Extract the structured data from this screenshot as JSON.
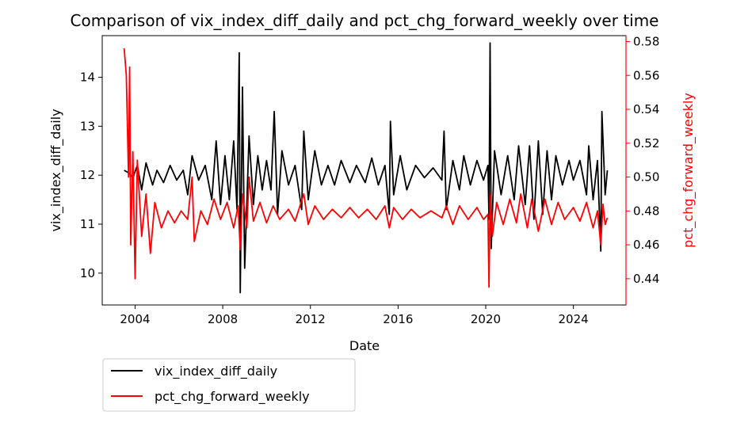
{
  "chart_data": {
    "type": "line",
    "title": "Comparison of vix_index_diff_daily and pct_chg_forward_weekly over time",
    "xlabel": "Date",
    "ylabel_left": "vix_index_diff_daily",
    "ylabel_right": "pct_chg_forward_weekly",
    "xlim": [
      2002.5,
      2026.4
    ],
    "ylim_left": [
      9.35,
      14.85
    ],
    "ylim_right": [
      0.4245,
      0.5835
    ],
    "x_ticks": [
      "2004",
      "2008",
      "2012",
      "2016",
      "2020",
      "2024"
    ],
    "y_ticks_left": [
      "10",
      "11",
      "12",
      "13",
      "14"
    ],
    "y_ticks_right": [
      "0.44",
      "0.46",
      "0.48",
      "0.50",
      "0.52",
      "0.54",
      "0.56",
      "0.58"
    ],
    "grid": false,
    "legend_position": "below-left",
    "colors": {
      "left_axis": "#000000",
      "right_axis": "#ff0000"
    },
    "series": [
      {
        "name": "vix_index_diff_daily",
        "axis": "left",
        "color": "#000000",
        "points": [
          [
            2003.5,
            12.1
          ],
          [
            2003.7,
            12.05
          ],
          [
            2003.9,
            11.95
          ],
          [
            2004.1,
            12.2
          ],
          [
            2004.3,
            11.7
          ],
          [
            2004.5,
            12.25
          ],
          [
            2004.8,
            11.8
          ],
          [
            2005.0,
            12.1
          ],
          [
            2005.3,
            11.85
          ],
          [
            2005.6,
            12.2
          ],
          [
            2005.9,
            11.9
          ],
          [
            2006.2,
            12.1
          ],
          [
            2006.4,
            11.6
          ],
          [
            2006.6,
            12.4
          ],
          [
            2006.9,
            11.9
          ],
          [
            2007.2,
            12.2
          ],
          [
            2007.5,
            11.5
          ],
          [
            2007.7,
            12.7
          ],
          [
            2007.9,
            11.4
          ],
          [
            2008.1,
            12.4
          ],
          [
            2008.3,
            11.5
          ],
          [
            2008.5,
            12.7
          ],
          [
            2008.65,
            11.3
          ],
          [
            2008.75,
            14.5
          ],
          [
            2008.8,
            9.6
          ],
          [
            2008.9,
            13.8
          ],
          [
            2009.0,
            10.1
          ],
          [
            2009.2,
            12.8
          ],
          [
            2009.4,
            11.4
          ],
          [
            2009.6,
            12.4
          ],
          [
            2009.8,
            11.7
          ],
          [
            2010.0,
            12.3
          ],
          [
            2010.2,
            11.7
          ],
          [
            2010.35,
            13.3
          ],
          [
            2010.5,
            11.2
          ],
          [
            2010.7,
            12.5
          ],
          [
            2011.0,
            11.8
          ],
          [
            2011.3,
            12.2
          ],
          [
            2011.6,
            11.3
          ],
          [
            2011.7,
            12.9
          ],
          [
            2011.9,
            11.5
          ],
          [
            2012.2,
            12.5
          ],
          [
            2012.5,
            11.8
          ],
          [
            2012.8,
            12.2
          ],
          [
            2013.1,
            11.8
          ],
          [
            2013.4,
            12.3
          ],
          [
            2013.8,
            11.85
          ],
          [
            2014.1,
            12.2
          ],
          [
            2014.5,
            11.85
          ],
          [
            2014.8,
            12.35
          ],
          [
            2015.1,
            11.8
          ],
          [
            2015.4,
            12.2
          ],
          [
            2015.6,
            11.2
          ],
          [
            2015.65,
            13.1
          ],
          [
            2015.8,
            11.6
          ],
          [
            2016.1,
            12.4
          ],
          [
            2016.4,
            11.7
          ],
          [
            2016.8,
            12.2
          ],
          [
            2017.2,
            11.95
          ],
          [
            2017.6,
            12.15
          ],
          [
            2018.0,
            11.9
          ],
          [
            2018.1,
            12.9
          ],
          [
            2018.2,
            11.3
          ],
          [
            2018.5,
            12.3
          ],
          [
            2018.8,
            11.7
          ],
          [
            2019.0,
            12.4
          ],
          [
            2019.3,
            11.8
          ],
          [
            2019.6,
            12.3
          ],
          [
            2019.9,
            11.9
          ],
          [
            2020.1,
            12.2
          ],
          [
            2020.15,
            11.1
          ],
          [
            2020.2,
            14.7
          ],
          [
            2020.25,
            10.5
          ],
          [
            2020.4,
            12.5
          ],
          [
            2020.7,
            11.6
          ],
          [
            2021.0,
            12.4
          ],
          [
            2021.3,
            11.5
          ],
          [
            2021.5,
            12.6
          ],
          [
            2021.8,
            11.4
          ],
          [
            2022.0,
            12.6
          ],
          [
            2022.2,
            11.1
          ],
          [
            2022.4,
            12.7
          ],
          [
            2022.6,
            11.2
          ],
          [
            2022.8,
            12.5
          ],
          [
            2023.0,
            11.5
          ],
          [
            2023.2,
            12.4
          ],
          [
            2023.5,
            11.8
          ],
          [
            2023.8,
            12.3
          ],
          [
            2024.0,
            11.9
          ],
          [
            2024.3,
            12.3
          ],
          [
            2024.6,
            11.6
          ],
          [
            2024.7,
            12.6
          ],
          [
            2024.9,
            11.5
          ],
          [
            2025.1,
            12.3
          ],
          [
            2025.25,
            10.45
          ],
          [
            2025.3,
            13.3
          ],
          [
            2025.45,
            11.6
          ],
          [
            2025.55,
            12.1
          ]
        ]
      },
      {
        "name": "pct_chg_forward_weekly",
        "axis": "right",
        "color": "#ff0000",
        "points": [
          [
            2003.5,
            0.576
          ],
          [
            2003.6,
            0.56
          ],
          [
            2003.7,
            0.5
          ],
          [
            2003.75,
            0.565
          ],
          [
            2003.8,
            0.46
          ],
          [
            2003.9,
            0.515
          ],
          [
            2004.0,
            0.44
          ],
          [
            2004.1,
            0.51
          ],
          [
            2004.3,
            0.465
          ],
          [
            2004.5,
            0.49
          ],
          [
            2004.7,
            0.455
          ],
          [
            2004.9,
            0.485
          ],
          [
            2005.2,
            0.47
          ],
          [
            2005.5,
            0.48
          ],
          [
            2005.8,
            0.473
          ],
          [
            2006.1,
            0.48
          ],
          [
            2006.4,
            0.475
          ],
          [
            2006.6,
            0.5
          ],
          [
            2006.7,
            0.462
          ],
          [
            2007.0,
            0.48
          ],
          [
            2007.3,
            0.472
          ],
          [
            2007.6,
            0.487
          ],
          [
            2007.9,
            0.475
          ],
          [
            2008.2,
            0.485
          ],
          [
            2008.5,
            0.47
          ],
          [
            2008.7,
            0.483
          ],
          [
            2008.8,
            0.457
          ],
          [
            2008.9,
            0.49
          ],
          [
            2009.1,
            0.47
          ],
          [
            2009.2,
            0.5
          ],
          [
            2009.4,
            0.474
          ],
          [
            2009.7,
            0.485
          ],
          [
            2010.0,
            0.473
          ],
          [
            2010.3,
            0.483
          ],
          [
            2010.6,
            0.475
          ],
          [
            2011.0,
            0.481
          ],
          [
            2011.3,
            0.474
          ],
          [
            2011.7,
            0.49
          ],
          [
            2011.9,
            0.472
          ],
          [
            2012.2,
            0.483
          ],
          [
            2012.6,
            0.475
          ],
          [
            2013.0,
            0.481
          ],
          [
            2013.4,
            0.476
          ],
          [
            2013.8,
            0.482
          ],
          [
            2014.2,
            0.476
          ],
          [
            2014.6,
            0.481
          ],
          [
            2015.0,
            0.475
          ],
          [
            2015.4,
            0.483
          ],
          [
            2015.6,
            0.47
          ],
          [
            2015.8,
            0.482
          ],
          [
            2016.2,
            0.475
          ],
          [
            2016.6,
            0.481
          ],
          [
            2017.0,
            0.476
          ],
          [
            2017.5,
            0.48
          ],
          [
            2018.0,
            0.476
          ],
          [
            2018.2,
            0.483
          ],
          [
            2018.5,
            0.472
          ],
          [
            2018.8,
            0.483
          ],
          [
            2019.2,
            0.475
          ],
          [
            2019.6,
            0.482
          ],
          [
            2019.9,
            0.475
          ],
          [
            2020.1,
            0.478
          ],
          [
            2020.15,
            0.435
          ],
          [
            2020.2,
            0.49
          ],
          [
            2020.3,
            0.465
          ],
          [
            2020.5,
            0.485
          ],
          [
            2020.8,
            0.472
          ],
          [
            2021.1,
            0.487
          ],
          [
            2021.4,
            0.473
          ],
          [
            2021.6,
            0.49
          ],
          [
            2021.9,
            0.47
          ],
          [
            2022.1,
            0.487
          ],
          [
            2022.4,
            0.468
          ],
          [
            2022.7,
            0.487
          ],
          [
            2023.0,
            0.472
          ],
          [
            2023.3,
            0.485
          ],
          [
            2023.6,
            0.475
          ],
          [
            2024.0,
            0.482
          ],
          [
            2024.3,
            0.474
          ],
          [
            2024.6,
            0.485
          ],
          [
            2024.9,
            0.47
          ],
          [
            2025.1,
            0.48
          ],
          [
            2025.25,
            0.46
          ],
          [
            2025.35,
            0.484
          ],
          [
            2025.45,
            0.472
          ],
          [
            2025.55,
            0.476
          ]
        ]
      }
    ]
  }
}
